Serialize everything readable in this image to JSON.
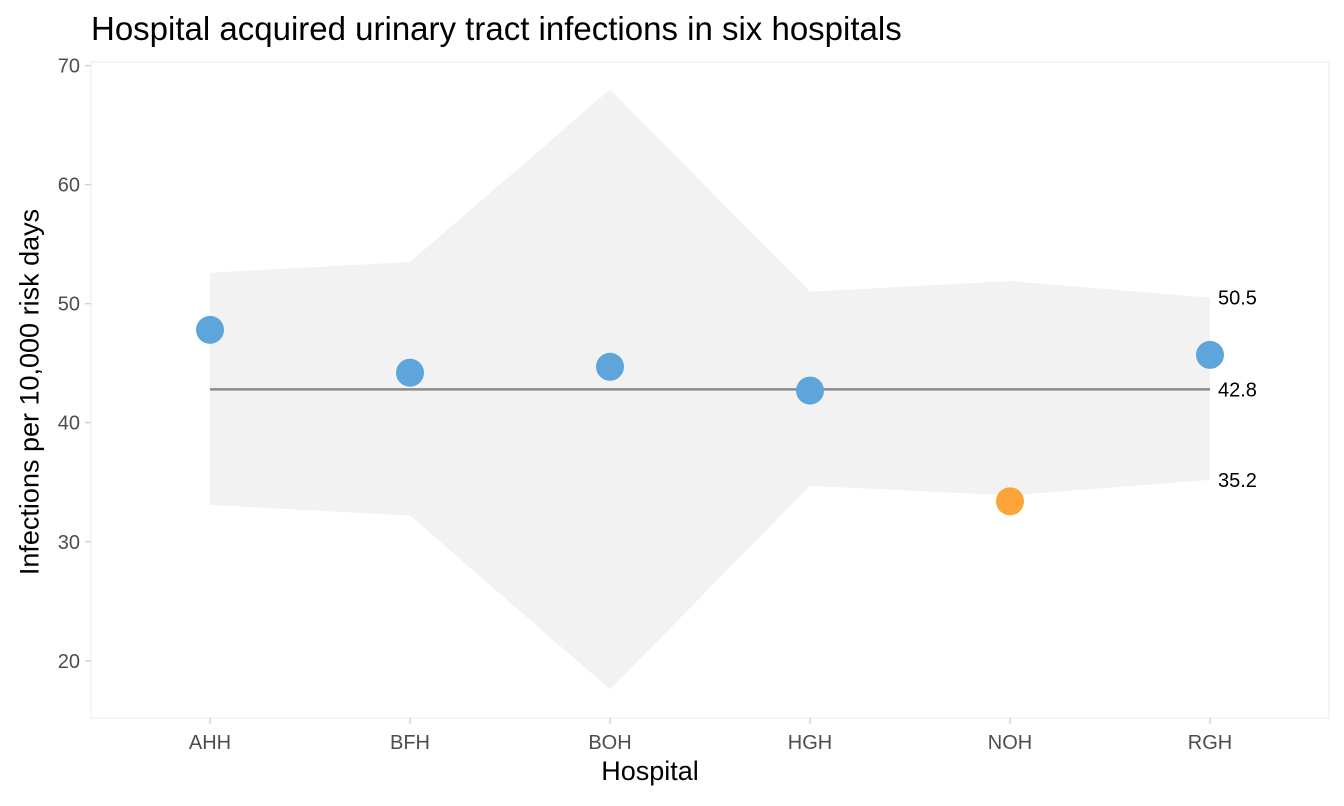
{
  "chart_data": {
    "type": "scatter",
    "title": "Hospital acquired urinary tract infections in six hospitals",
    "xlabel": "Hospital",
    "ylabel": "Infections per 10,000 risk days",
    "categories": [
      "AHH",
      "BFH",
      "BOH",
      "HGH",
      "NOH",
      "RGH"
    ],
    "values": [
      47.8,
      44.2,
      44.7,
      42.7,
      33.4,
      45.7
    ],
    "point_colors": [
      "#5da5da",
      "#5da5da",
      "#5da5da",
      "#5da5da",
      "#faa43a",
      "#5da5da"
    ],
    "upper_limit": [
      52.6,
      53.5,
      68.0,
      51.0,
      51.9,
      50.5
    ],
    "lower_limit": [
      33.1,
      32.2,
      17.6,
      34.7,
      33.9,
      35.2
    ],
    "center_line": 42.8,
    "end_labels": {
      "upper": "50.5",
      "center": "42.8",
      "lower": "35.2"
    },
    "ylim": [
      15.2,
      70.3
    ],
    "yticks": [
      20,
      30,
      40,
      50,
      60,
      70
    ],
    "grid": false,
    "colors": {
      "limits_band": "#f2f2f2",
      "center_line": "#8c8c8c",
      "axis_ticks": "#cccccc"
    }
  }
}
